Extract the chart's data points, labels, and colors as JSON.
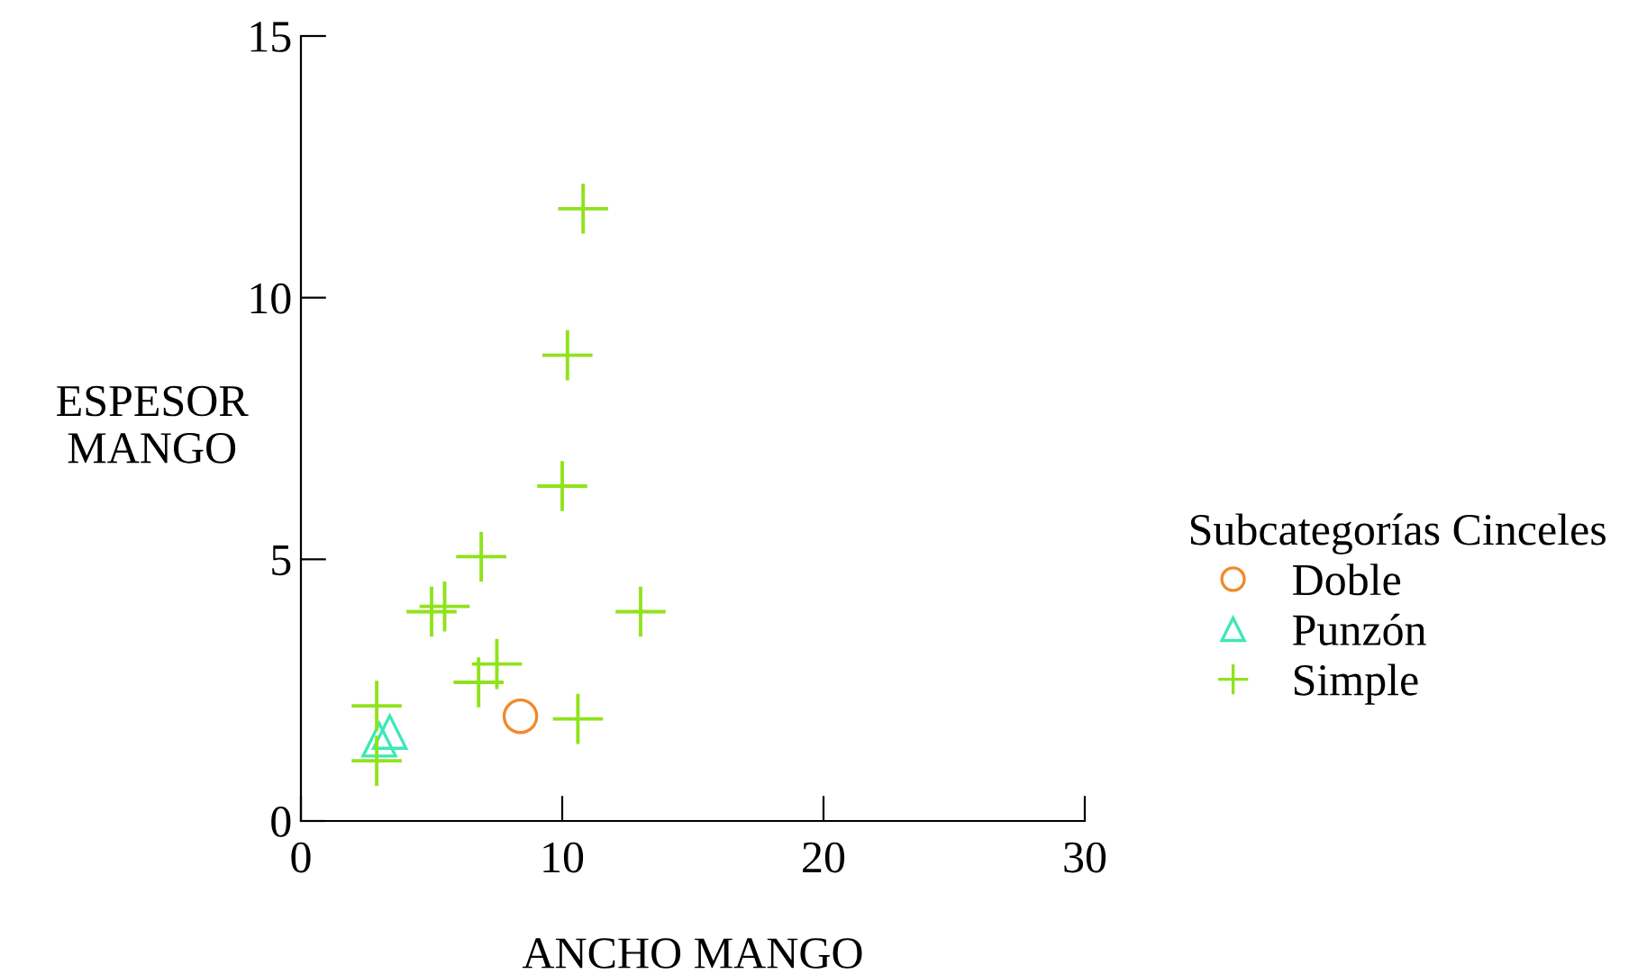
{
  "chart_data": {
    "type": "scatter",
    "xlabel": "ANCHO MANGO",
    "ylabel": "ESPESOR\nMANGO",
    "legend_title": "Subcategorías Cinceles",
    "xlim": [
      0,
      30
    ],
    "ylim": [
      0,
      15
    ],
    "xticks": [
      0,
      10,
      20,
      30
    ],
    "yticks": [
      0,
      5,
      10,
      15
    ],
    "grid": false,
    "legend": "right",
    "series": [
      {
        "name": "Doble",
        "color": "#f08a2c",
        "marker": "circle",
        "x": [
          8.4
        ],
        "values": [
          2.0
        ]
      },
      {
        "name": "Punzón",
        "color": "#3de8b8",
        "marker": "triangle",
        "x": [
          3.0,
          3.4
        ],
        "values": [
          1.55,
          1.7
        ]
      },
      {
        "name": "Simple",
        "color": "#8fe31c",
        "marker": "cross",
        "x": [
          6.9,
          5.0,
          5.5,
          13.0,
          7.5,
          6.8,
          2.9,
          2.9,
          10.6,
          10.8,
          10.2,
          10.0
        ],
        "values": [
          5.05,
          4.0,
          4.1,
          4.0,
          3.0,
          2.65,
          2.2,
          1.15,
          1.95,
          11.7,
          8.9,
          6.4
        ]
      }
    ]
  }
}
